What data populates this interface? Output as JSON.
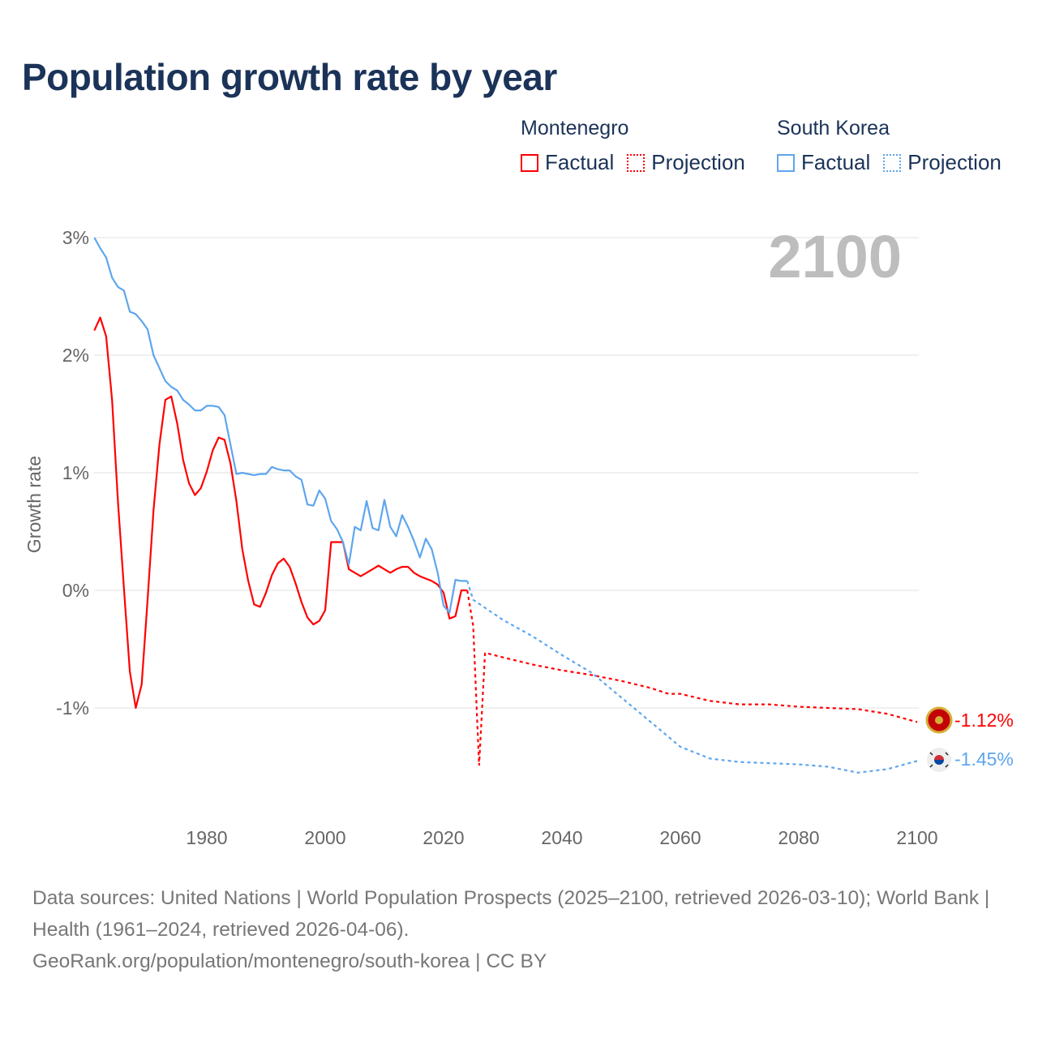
{
  "title": "Population growth rate by year",
  "legend": {
    "groups": [
      {
        "name": "Montenegro",
        "color": "#ff0000",
        "factual": "Factual",
        "projection": "Projection"
      },
      {
        "name": "South Korea",
        "color": "#5ea6ee",
        "factual": "Factual",
        "projection": "Projection"
      }
    ]
  },
  "year_overlay": "2100",
  "footer": {
    "sources": "Data sources: United Nations | World Population Prospects (2025–2100, retrieved 2026-03-10); World Bank | Health (1961–2024, retrieved 2026-04-06).",
    "link": "GeoRank.org/population/montenegro/south-korea | CC BY"
  },
  "chart_data": {
    "type": "line",
    "title": "Population growth rate by year",
    "xlabel": "",
    "ylabel": "Growth rate",
    "xlim": [
      1961,
      2100
    ],
    "ylim": [
      -1.75,
      3.1
    ],
    "x_ticks": [
      1980,
      2000,
      2020,
      2040,
      2060,
      2080,
      2100
    ],
    "x_tick_labels": [
      "1980",
      "2000",
      "2020",
      "2040",
      "2060",
      "2080",
      "2100"
    ],
    "y_ticks": [
      3,
      2,
      1,
      0,
      -1
    ],
    "y_tick_labels": [
      "3%",
      "2%",
      "1%",
      "0%",
      "-1%"
    ],
    "grid": true,
    "legend_position": "top-right",
    "series": [
      {
        "name": "Montenegro",
        "color": "#ff0000",
        "end_label": "-1.12%",
        "factual": {
          "x": [
            1961,
            1962,
            1963,
            1964,
            1965,
            1966,
            1967,
            1968,
            1969,
            1970,
            1971,
            1972,
            1973,
            1974,
            1975,
            1976,
            1977,
            1978,
            1979,
            1980,
            1981,
            1982,
            1983,
            1984,
            1985,
            1986,
            1987,
            1988,
            1989,
            1990,
            1991,
            1992,
            1993,
            1994,
            1995,
            1996,
            1997,
            1998,
            1999,
            2000,
            2001,
            2002,
            2003,
            2004,
            2005,
            2006,
            2007,
            2008,
            2009,
            2010,
            2011,
            2012,
            2013,
            2014,
            2015,
            2016,
            2017,
            2018,
            2019,
            2020,
            2021,
            2022,
            2023,
            2024
          ],
          "y": [
            2.21,
            2.32,
            2.16,
            1.62,
            0.75,
            0.02,
            -0.69,
            -1.0,
            -0.8,
            -0.08,
            0.68,
            1.24,
            1.62,
            1.65,
            1.42,
            1.11,
            0.91,
            0.81,
            0.87,
            1.01,
            1.19,
            1.3,
            1.28,
            1.08,
            0.76,
            0.35,
            0.08,
            -0.12,
            -0.14,
            -0.02,
            0.13,
            0.23,
            0.27,
            0.2,
            0.06,
            -0.1,
            -0.23,
            -0.29,
            -0.26,
            -0.17,
            0.41,
            0.41,
            0.41,
            0.18,
            0.15,
            0.12,
            0.15,
            0.18,
            0.21,
            0.18,
            0.15,
            0.18,
            0.2,
            0.2,
            0.15,
            0.12,
            0.1,
            0.08,
            0.05,
            -0.02,
            -0.24,
            -0.22,
            0.0,
            0.0
          ]
        },
        "projection": {
          "x": [
            2024,
            2025,
            2026,
            2027,
            2030,
            2035,
            2040,
            2045,
            2050,
            2055,
            2058,
            2060,
            2065,
            2070,
            2075,
            2080,
            2085,
            2090,
            2095,
            2100
          ],
          "y": [
            0.0,
            -0.3,
            -1.49,
            -0.53,
            -0.57,
            -0.63,
            -0.68,
            -0.72,
            -0.77,
            -0.83,
            -0.88,
            -0.88,
            -0.94,
            -0.97,
            -0.97,
            -0.99,
            -1.0,
            -1.01,
            -1.05,
            -1.12
          ]
        }
      },
      {
        "name": "South Korea",
        "color": "#5ea6ee",
        "end_label": "-1.45%",
        "factual": {
          "x": [
            1961,
            1962,
            1963,
            1964,
            1965,
            1966,
            1967,
            1968,
            1969,
            1970,
            1971,
            1972,
            1973,
            1974,
            1975,
            1976,
            1977,
            1978,
            1979,
            1980,
            1981,
            1982,
            1983,
            1984,
            1985,
            1986,
            1987,
            1988,
            1989,
            1990,
            1991,
            1992,
            1993,
            1994,
            1995,
            1996,
            1997,
            1998,
            1999,
            2000,
            2001,
            2002,
            2003,
            2004,
            2005,
            2006,
            2007,
            2008,
            2009,
            2010,
            2011,
            2012,
            2013,
            2014,
            2015,
            2016,
            2017,
            2018,
            2019,
            2020,
            2021,
            2022,
            2023,
            2024
          ],
          "y": [
            3.0,
            2.91,
            2.83,
            2.66,
            2.58,
            2.55,
            2.37,
            2.35,
            2.29,
            2.22,
            2.0,
            1.89,
            1.78,
            1.73,
            1.7,
            1.62,
            1.58,
            1.53,
            1.53,
            1.57,
            1.57,
            1.56,
            1.49,
            1.24,
            0.99,
            1.0,
            0.99,
            0.98,
            0.99,
            0.99,
            1.05,
            1.03,
            1.02,
            1.02,
            0.97,
            0.94,
            0.73,
            0.72,
            0.85,
            0.78,
            0.59,
            0.52,
            0.41,
            0.22,
            0.54,
            0.51,
            0.76,
            0.53,
            0.51,
            0.77,
            0.54,
            0.46,
            0.64,
            0.54,
            0.42,
            0.28,
            0.44,
            0.35,
            0.15,
            -0.13,
            -0.19,
            0.09,
            0.08,
            0.08
          ]
        },
        "projection": {
          "x": [
            2024,
            2025,
            2030,
            2035,
            2040,
            2045,
            2050,
            2055,
            2060,
            2065,
            2070,
            2075,
            2080,
            2085,
            2090,
            2095,
            2100
          ],
          "y": [
            0.08,
            -0.08,
            -0.25,
            -0.39,
            -0.55,
            -0.7,
            -0.91,
            -1.12,
            -1.33,
            -1.43,
            -1.46,
            -1.47,
            -1.48,
            -1.5,
            -1.55,
            -1.52,
            -1.45
          ]
        }
      }
    ]
  }
}
